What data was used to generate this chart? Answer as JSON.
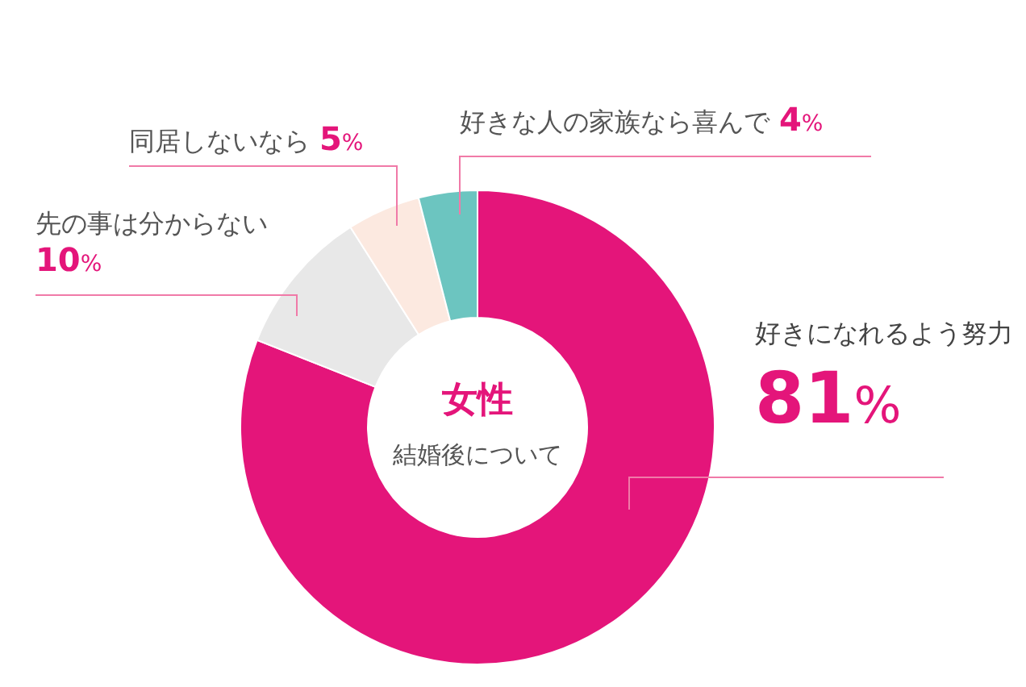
{
  "chart_data": {
    "type": "donut",
    "title": "女性",
    "subtitle": "結婚後について",
    "categories": [
      "好きになれるよう努力",
      "先の事は分からない",
      "同居しないなら",
      "好きな人の家族なら喜んで"
    ],
    "values": [
      81,
      10,
      5,
      4
    ],
    "colors": [
      "#e4157a",
      "#e8e8e8",
      "#fce9e0",
      "#6cc5c0"
    ],
    "value_labels": [
      "81%",
      "10%",
      "5%",
      "4%"
    ]
  }
}
